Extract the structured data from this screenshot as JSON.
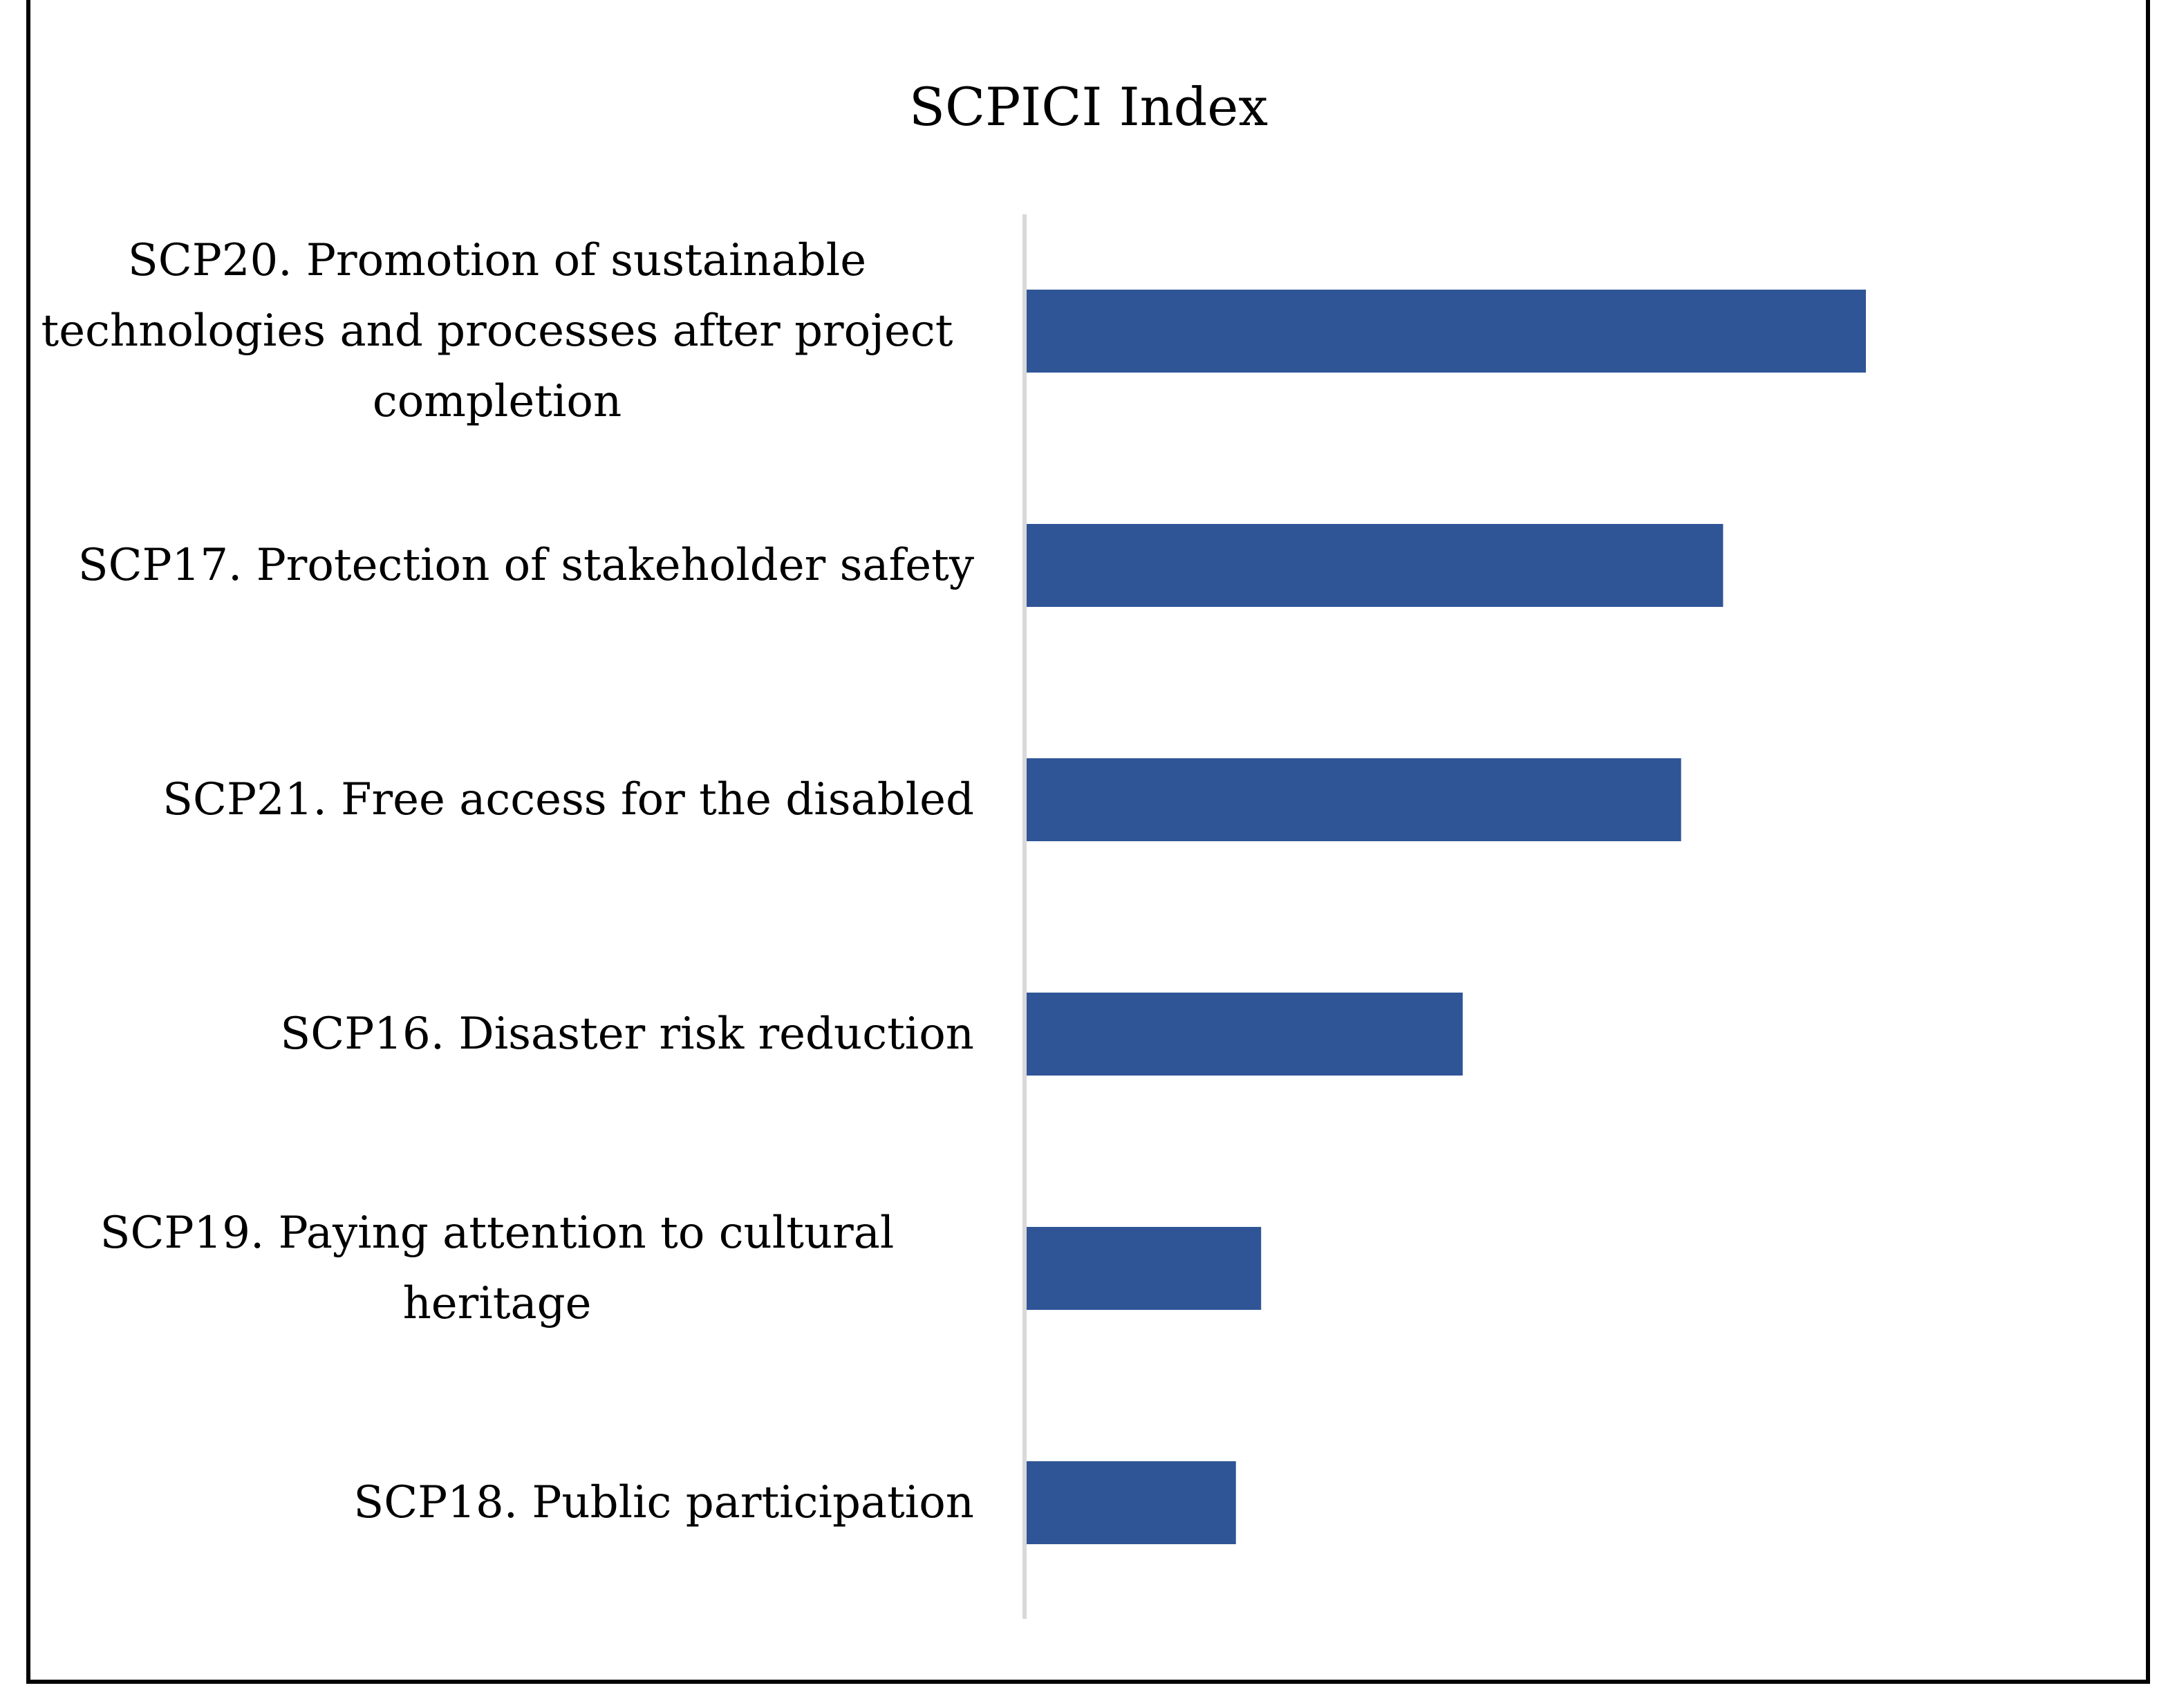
{
  "chart_data": {
    "type": "bar",
    "orientation": "horizontal",
    "title": "SCPICI Index",
    "xlabel": "",
    "ylabel": "",
    "categories": [
      "SCP20. Promotion of sustainable technologies and processes after project completion",
      "SCP17. Protection of stakeholder safety",
      "SCP21. Free access for the disabled",
      "SCP16. Disaster risk reduction",
      "SCP19. Paying attention to cultural heritage",
      "SCP18. Public participation"
    ],
    "category_lines": [
      [
        "SCP20. Promotion of sustainable",
        "technologies and processes after project",
        "completion"
      ],
      [
        "SCP17. Protection of stakeholder safety"
      ],
      [
        "SCP21. Free access for the disabled"
      ],
      [
        "SCP16. Disaster risk reduction"
      ],
      [
        "SCP19. Paying attention to cultural",
        "heritage"
      ],
      [
        "SCP18. Public participation"
      ]
    ],
    "values": [
      1.0,
      0.83,
      0.78,
      0.52,
      0.28,
      0.25
    ],
    "xlim": [
      0,
      1.35
    ],
    "grid": false,
    "legend": "none",
    "bar_color": "#2f5597",
    "axis_color": "#d9d9d9"
  }
}
